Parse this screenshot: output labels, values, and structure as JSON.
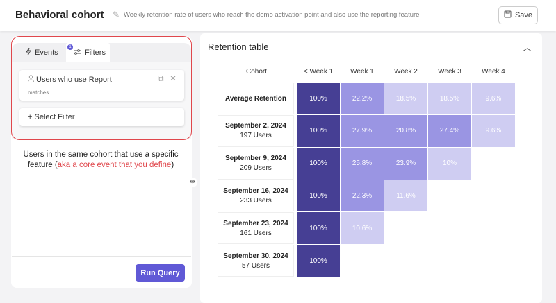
{
  "header": {
    "title": "Behavioral cohort",
    "subtitle": "Weekly retention rate of users who reach the demo activation point and also use the reporting feature",
    "save_label": "Save"
  },
  "left_panel": {
    "tabs": [
      {
        "label": "Events",
        "icon": "lightning-icon"
      },
      {
        "label": "Filters",
        "icon": "sliders-icon",
        "badge": "1"
      }
    ],
    "filter": {
      "label": "Users who use Report",
      "sub": "matches"
    },
    "select_filter_label": "Select Filter",
    "note_plain": "Users in the same cohort that use a specific feature (",
    "note_red": "aka a core event that you define",
    "note_end": ")",
    "run_query_label": "Run Query"
  },
  "retention": {
    "title": "Retention table",
    "columns": [
      "Cohort",
      "< Week 1",
      "Week 1",
      "Week 2",
      "Week 3",
      "Week 4"
    ],
    "rows": [
      {
        "cohort": "Average Retention",
        "users": "",
        "values": [
          "100%",
          "22.2%",
          "18.5%",
          "18.5%",
          "9.6%"
        ]
      },
      {
        "cohort": "September 2, 2024",
        "users": "197 Users",
        "values": [
          "100%",
          "27.9%",
          "20.8%",
          "27.4%",
          "9.6%"
        ]
      },
      {
        "cohort": "September 9, 2024",
        "users": "209 Users",
        "values": [
          "100%",
          "25.8%",
          "23.9%",
          "10%"
        ]
      },
      {
        "cohort": "September 16, 2024",
        "users": "233 Users",
        "values": [
          "100%",
          "22.3%",
          "11.6%"
        ]
      },
      {
        "cohort": "September 23, 2024",
        "users": "161 Users",
        "values": [
          "100%",
          "10.6%"
        ]
      },
      {
        "cohort": "September 30, 2024",
        "users": "57 Users",
        "values": [
          "100%"
        ]
      }
    ],
    "colors": {
      "high": "#463f94",
      "mid": "#9a95e3",
      "low": "#cfcdf2"
    }
  }
}
